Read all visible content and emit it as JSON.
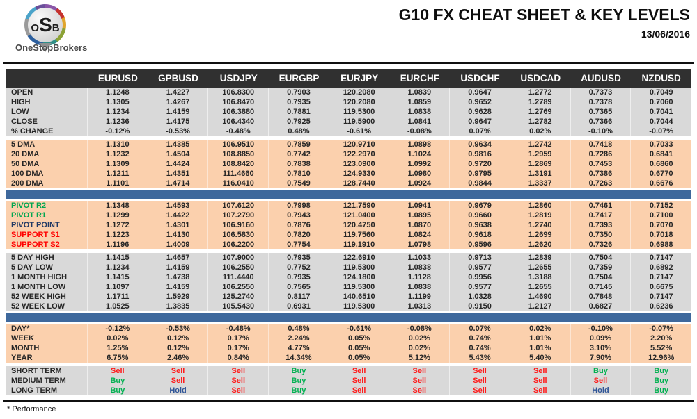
{
  "header": {
    "logo": {
      "abbr_pre": "O",
      "abbr_mid": "S",
      "abbr_post": "B",
      "brand": "OneStopBrokers"
    },
    "title": "G10 FX CHEAT SHEET & KEY LEVELS",
    "date": "13/06/2016"
  },
  "footnote": "* Performance",
  "colors": {
    "header_bg": "#303030",
    "section_gray": "#d9d9d9",
    "section_peach": "#fbd0ad",
    "divider_blue": "#3e689c",
    "buy_green": "#00b050",
    "sell_red": "#ff1a1a",
    "hold_blue": "#2f5597",
    "pivot_green": "#00a650",
    "pivot_navy": "#1f3864",
    "support_red": "#ff0000"
  },
  "chart_data": {
    "type": "table",
    "title": "G10 FX CHEAT SHEET & KEY LEVELS",
    "date": "13/06/2016",
    "columns": [
      "EURUSD",
      "GPBUSD",
      "USDJPY",
      "EURGBP",
      "EURJPY",
      "EURCHF",
      "USDCHF",
      "USDCAD",
      "AUDUSD",
      "NZDUSD"
    ],
    "sections": [
      {
        "name": "ohlc",
        "style": "gray",
        "rows": [
          {
            "label": "OPEN",
            "values": [
              "1.1248",
              "1.4227",
              "106.8300",
              "0.7903",
              "120.2080",
              "1.0839",
              "0.9647",
              "1.2772",
              "0.7373",
              "0.7049"
            ]
          },
          {
            "label": "HIGH",
            "values": [
              "1.1305",
              "1.4267",
              "106.8470",
              "0.7935",
              "120.2080",
              "1.0859",
              "0.9652",
              "1.2789",
              "0.7378",
              "0.7060"
            ]
          },
          {
            "label": "LOW",
            "values": [
              "1.1234",
              "1.4159",
              "106.3880",
              "0.7881",
              "119.5300",
              "1.0838",
              "0.9628",
              "1.2769",
              "0.7365",
              "0.7041"
            ]
          },
          {
            "label": "CLOSE",
            "values": [
              "1.1236",
              "1.4175",
              "106.4340",
              "0.7925",
              "119.5900",
              "1.0841",
              "0.9647",
              "1.2782",
              "0.7366",
              "0.7044"
            ]
          },
          {
            "label": "% CHANGE",
            "values": [
              "-0.12%",
              "-0.53%",
              "-0.48%",
              "0.48%",
              "-0.61%",
              "-0.08%",
              "0.07%",
              "0.02%",
              "-0.10%",
              "-0.07%"
            ]
          }
        ]
      },
      {
        "name": "dma",
        "style": "peach",
        "rows": [
          {
            "label": "5 DMA",
            "values": [
              "1.1310",
              "1.4385",
              "106.9510",
              "0.7859",
              "120.9710",
              "1.0898",
              "0.9634",
              "1.2742",
              "0.7418",
              "0.7033"
            ]
          },
          {
            "label": "20 DMA",
            "values": [
              "1.1232",
              "1.4504",
              "108.8850",
              "0.7742",
              "122.2970",
              "1.1024",
              "0.9816",
              "1.2959",
              "0.7286",
              "0.6841"
            ]
          },
          {
            "label": "50 DMA",
            "values": [
              "1.1309",
              "1.4424",
              "108.8420",
              "0.7838",
              "123.0900",
              "1.0992",
              "0.9720",
              "1.2869",
              "0.7453",
              "0.6860"
            ]
          },
          {
            "label": "100 DMA",
            "values": [
              "1.1211",
              "1.4351",
              "111.4660",
              "0.7810",
              "124.9330",
              "1.0980",
              "0.9795",
              "1.3191",
              "0.7386",
              "0.6770"
            ]
          },
          {
            "label": "200 DMA",
            "values": [
              "1.1101",
              "1.4714",
              "116.0410",
              "0.7549",
              "128.7440",
              "1.0924",
              "0.9844",
              "1.3337",
              "0.7263",
              "0.6676"
            ]
          }
        ]
      },
      {
        "name": "divider-1",
        "style": "blue-bar",
        "rows": []
      },
      {
        "name": "pivots",
        "style": "peach",
        "rows": [
          {
            "label": "PIVOT R2",
            "label_color": "green",
            "values": [
              "1.1348",
              "1.4593",
              "107.6120",
              "0.7998",
              "121.7590",
              "1.0941",
              "0.9679",
              "1.2860",
              "0.7461",
              "0.7152"
            ]
          },
          {
            "label": "PIVOT R1",
            "label_color": "green",
            "values": [
              "1.1299",
              "1.4422",
              "107.2790",
              "0.7943",
              "121.0400",
              "1.0895",
              "0.9660",
              "1.2819",
              "0.7417",
              "0.7100"
            ]
          },
          {
            "label": "PIVOT POINT",
            "label_color": "navy",
            "values": [
              "1.1272",
              "1.4301",
              "106.9160",
              "0.7876",
              "120.4750",
              "1.0870",
              "0.9638",
              "1.2740",
              "0.7393",
              "0.7070"
            ]
          },
          {
            "label": "SUPPORT S1",
            "label_color": "red",
            "values": [
              "1.1223",
              "1.4130",
              "106.5830",
              "0.7820",
              "119.7560",
              "1.0824",
              "0.9618",
              "1.2699",
              "0.7350",
              "0.7018"
            ]
          },
          {
            "label": "SUPPORT S2",
            "label_color": "red",
            "values": [
              "1.1196",
              "1.4009",
              "106.2200",
              "0.7754",
              "119.1910",
              "1.0798",
              "0.9596",
              "1.2620",
              "0.7326",
              "0.6988"
            ]
          }
        ]
      },
      {
        "name": "ranges",
        "style": "gray",
        "rows": [
          {
            "label": "5 DAY HIGH",
            "values": [
              "1.1415",
              "1.4657",
              "107.9000",
              "0.7935",
              "122.6910",
              "1.1033",
              "0.9713",
              "1.2839",
              "0.7504",
              "0.7147"
            ]
          },
          {
            "label": "5 DAY LOW",
            "values": [
              "1.1234",
              "1.4159",
              "106.2550",
              "0.7752",
              "119.5300",
              "1.0838",
              "0.9577",
              "1.2655",
              "0.7359",
              "0.6892"
            ]
          },
          {
            "label": "1 MONTH HIGH",
            "values": [
              "1.1415",
              "1.4738",
              "111.4440",
              "0.7935",
              "124.1800",
              "1.1128",
              "0.9956",
              "1.3188",
              "0.7504",
              "0.7147"
            ]
          },
          {
            "label": "1 MONTH LOW",
            "values": [
              "1.1097",
              "1.4159",
              "106.2550",
              "0.7565",
              "119.5300",
              "1.0838",
              "0.9577",
              "1.2655",
              "0.7145",
              "0.6675"
            ]
          },
          {
            "label": "52 WEEK HIGH",
            "values": [
              "1.1711",
              "1.5929",
              "125.2740",
              "0.8117",
              "140.6510",
              "1.1199",
              "1.0328",
              "1.4690",
              "0.7848",
              "0.7147"
            ]
          },
          {
            "label": "52 WEEK LOW",
            "values": [
              "1.0525",
              "1.3835",
              "105.5430",
              "0.6931",
              "119.5300",
              "1.0313",
              "0.9150",
              "1.2127",
              "0.6827",
              "0.6236"
            ]
          }
        ]
      },
      {
        "name": "divider-2",
        "style": "blue-bar",
        "rows": []
      },
      {
        "name": "performance",
        "style": "peach",
        "rows": [
          {
            "label": "DAY*",
            "values": [
              "-0.12%",
              "-0.53%",
              "-0.48%",
              "0.48%",
              "-0.61%",
              "-0.08%",
              "0.07%",
              "0.02%",
              "-0.10%",
              "-0.07%"
            ]
          },
          {
            "label": "WEEK",
            "values": [
              "0.02%",
              "0.12%",
              "0.17%",
              "2.24%",
              "0.05%",
              "0.02%",
              "0.74%",
              "1.01%",
              "0.09%",
              "2.20%"
            ]
          },
          {
            "label": "MONTH",
            "values": [
              "1.25%",
              "0.12%",
              "0.17%",
              "4.77%",
              "0.05%",
              "0.02%",
              "0.74%",
              "1.01%",
              "3.10%",
              "5.52%"
            ]
          },
          {
            "label": "YEAR",
            "values": [
              "6.75%",
              "2.46%",
              "0.84%",
              "14.34%",
              "0.05%",
              "5.12%",
              "5.43%",
              "5.40%",
              "7.90%",
              "12.96%"
            ]
          }
        ]
      },
      {
        "name": "sentiment",
        "style": "gray",
        "colored_values": true,
        "rows": [
          {
            "label": "SHORT TERM",
            "values": [
              "Sell",
              "Sell",
              "Sell",
              "Buy",
              "Sell",
              "Sell",
              "Sell",
              "Sell",
              "Buy",
              "Buy"
            ]
          },
          {
            "label": "MEDIUM TERM",
            "values": [
              "Buy",
              "Sell",
              "Sell",
              "Buy",
              "Sell",
              "Sell",
              "Sell",
              "Sell",
              "Sell",
              "Buy"
            ]
          },
          {
            "label": "LONG TERM",
            "values": [
              "Buy",
              "Hold",
              "Sell",
              "Buy",
              "Sell",
              "Sell",
              "Sell",
              "Sell",
              "Hold",
              "Buy"
            ]
          }
        ]
      }
    ]
  }
}
